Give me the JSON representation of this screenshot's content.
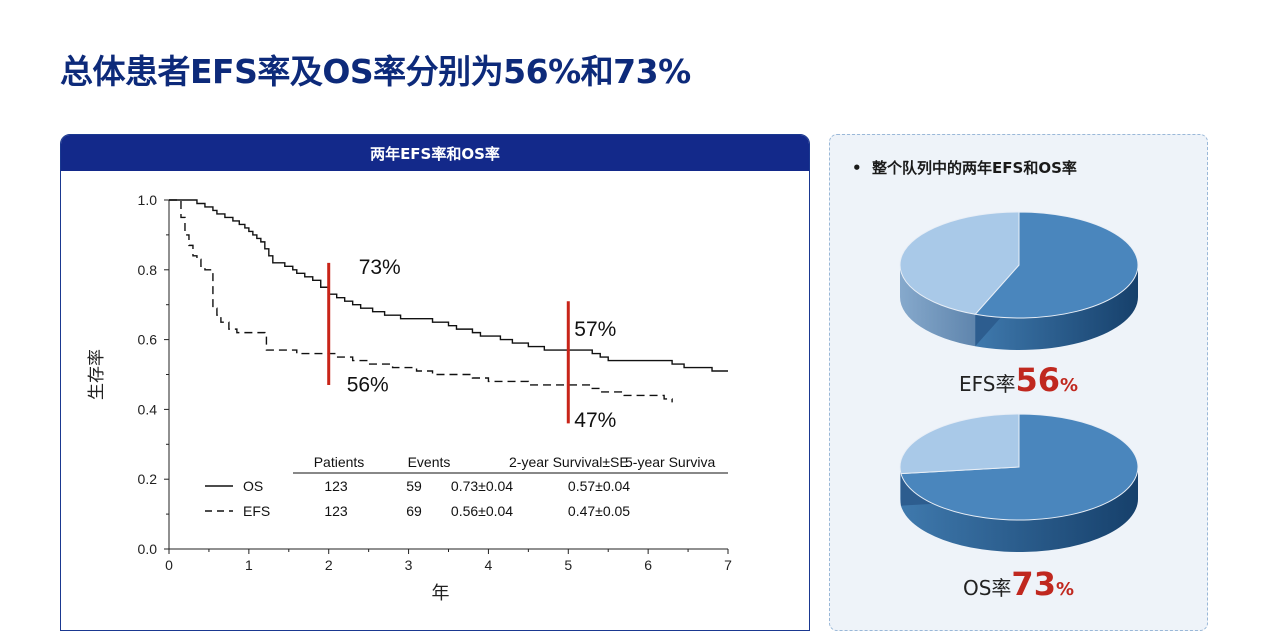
{
  "title": "总体患者EFS率及OS率分别为56%和73%",
  "left_panel": {
    "header": "两年EFS率和OS率"
  },
  "right_panel": {
    "bullet": "•",
    "heading": "整个队列中的两年EFS和OS率",
    "efs_caption": {
      "label": "EFS率",
      "number": "56",
      "percent": "%"
    },
    "os_caption": {
      "label": "OS率",
      "number": "73",
      "percent": "%"
    }
  },
  "table": {
    "headers": [
      "Patients",
      "Events",
      "2-year Survival±SE",
      "5-year Surviva"
    ],
    "rows": [
      {
        "name": "OS",
        "cells": [
          "123",
          "59",
          "0.73±0.04",
          "0.57±0.04"
        ]
      },
      {
        "name": "EFS",
        "cells": [
          "123",
          "69",
          "0.56±0.04",
          "0.47±0.05"
        ]
      }
    ]
  },
  "chart_data": [
    {
      "type": "line",
      "title": "",
      "xlabel": "年",
      "ylabel": "生存率",
      "xlim": [
        0,
        7
      ],
      "ylim": [
        0,
        1.0
      ],
      "x_ticks": [
        "0",
        "1",
        "2",
        "3",
        "4",
        "5",
        "6",
        "7"
      ],
      "y_ticks": [
        "0.0",
        "0.2",
        "0.4",
        "0.6",
        "0.8",
        "1.0"
      ],
      "series": [
        {
          "name": "OS",
          "style": "solid",
          "points": [
            [
              0,
              1.0
            ],
            [
              0.25,
              1.0
            ],
            [
              0.35,
              0.99
            ],
            [
              0.45,
              0.98
            ],
            [
              0.55,
              0.97
            ],
            [
              0.6,
              0.96
            ],
            [
              0.7,
              0.95
            ],
            [
              0.8,
              0.94
            ],
            [
              0.88,
              0.93
            ],
            [
              0.95,
              0.92
            ],
            [
              1.0,
              0.91
            ],
            [
              1.05,
              0.9
            ],
            [
              1.1,
              0.89
            ],
            [
              1.15,
              0.88
            ],
            [
              1.2,
              0.86
            ],
            [
              1.25,
              0.84
            ],
            [
              1.3,
              0.82
            ],
            [
              1.45,
              0.81
            ],
            [
              1.55,
              0.8
            ],
            [
              1.6,
              0.79
            ],
            [
              1.7,
              0.78
            ],
            [
              1.8,
              0.77
            ],
            [
              1.9,
              0.75
            ],
            [
              2.0,
              0.73
            ],
            [
              2.1,
              0.72
            ],
            [
              2.2,
              0.71
            ],
            [
              2.3,
              0.7
            ],
            [
              2.4,
              0.69
            ],
            [
              2.55,
              0.68
            ],
            [
              2.7,
              0.67
            ],
            [
              2.9,
              0.66
            ],
            [
              3.2,
              0.66
            ],
            [
              3.3,
              0.65
            ],
            [
              3.5,
              0.64
            ],
            [
              3.6,
              0.63
            ],
            [
              3.8,
              0.62
            ],
            [
              3.9,
              0.61
            ],
            [
              4.15,
              0.6
            ],
            [
              4.3,
              0.59
            ],
            [
              4.5,
              0.58
            ],
            [
              4.7,
              0.57
            ],
            [
              5.0,
              0.57
            ],
            [
              5.3,
              0.56
            ],
            [
              5.4,
              0.55
            ],
            [
              5.5,
              0.54
            ],
            [
              6.3,
              0.53
            ],
            [
              6.45,
              0.52
            ],
            [
              6.8,
              0.51
            ],
            [
              7.0,
              0.51
            ]
          ]
        },
        {
          "name": "EFS",
          "style": "dashed",
          "points": [
            [
              0,
              1.0
            ],
            [
              0.1,
              1.0
            ],
            [
              0.15,
              0.95
            ],
            [
              0.2,
              0.9
            ],
            [
              0.25,
              0.87
            ],
            [
              0.3,
              0.84
            ],
            [
              0.35,
              0.83
            ],
            [
              0.4,
              0.81
            ],
            [
              0.45,
              0.8
            ],
            [
              0.52,
              0.8
            ],
            [
              0.55,
              0.69
            ],
            [
              0.6,
              0.67
            ],
            [
              0.65,
              0.65
            ],
            [
              0.75,
              0.63
            ],
            [
              0.85,
              0.62
            ],
            [
              1.2,
              0.61
            ],
            [
              1.22,
              0.57
            ],
            [
              1.5,
              0.57
            ],
            [
              1.6,
              0.56
            ],
            [
              2.0,
              0.56
            ],
            [
              2.1,
              0.55
            ],
            [
              2.3,
              0.54
            ],
            [
              2.5,
              0.53
            ],
            [
              2.8,
              0.52
            ],
            [
              3.1,
              0.51
            ],
            [
              3.3,
              0.5
            ],
            [
              3.8,
              0.49
            ],
            [
              4.0,
              0.48
            ],
            [
              4.5,
              0.47
            ],
            [
              5.3,
              0.46
            ],
            [
              5.4,
              0.45
            ],
            [
              5.7,
              0.44
            ],
            [
              6.2,
              0.43
            ],
            [
              6.3,
              0.42
            ],
            [
              6.3,
              0.42
            ]
          ]
        }
      ],
      "annotations": [
        {
          "text": "73%",
          "x": 2,
          "y": 0.73
        },
        {
          "text": "56%",
          "x": 2,
          "y": 0.56
        },
        {
          "text": "57%",
          "x": 5,
          "y": 0.57
        },
        {
          "text": "47%",
          "x": 5,
          "y": 0.47
        }
      ],
      "marker_lines": [
        {
          "x": 2,
          "y_from": 0.47,
          "y_to": 0.82,
          "color": "#c82418"
        },
        {
          "x": 5,
          "y_from": 0.36,
          "y_to": 0.71,
          "color": "#c82418"
        }
      ]
    },
    {
      "type": "pie",
      "title": "",
      "labels": [
        "EFS",
        "remainder"
      ],
      "values": [
        56,
        44
      ],
      "colors": [
        "#4a86bd",
        "#a9c9e8"
      ]
    },
    {
      "type": "pie",
      "title": "",
      "labels": [
        "OS",
        "remainder"
      ],
      "values": [
        73,
        27
      ],
      "colors": [
        "#4a86bd",
        "#a9c9e8"
      ]
    }
  ]
}
